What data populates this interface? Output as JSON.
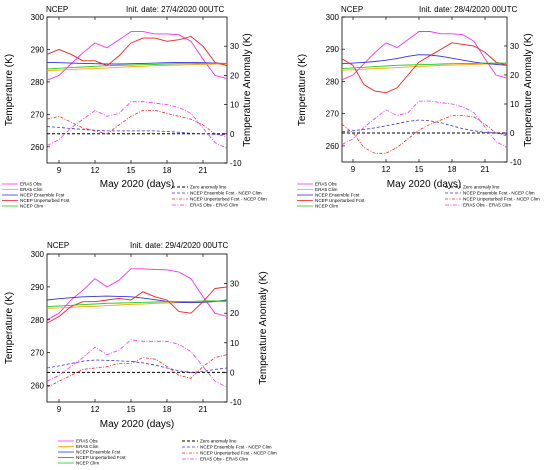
{
  "colors": {
    "era5_obs": "#ee33ee",
    "era5_clim": "#ffa500",
    "ens_fcst": "#3333dd",
    "unp_fcst": "#ee2222",
    "ncep_clim": "#22cc22",
    "zero": "#000000",
    "ens_anom": "#3333dd",
    "unp_anom": "#ee2222",
    "obs_anom": "#ee33ee"
  },
  "legend": {
    "left": [
      "ERA5 Obs",
      "ERA5 Clim",
      "NCEP Ensemble Fcst",
      "NCEP Unperturbed Fcst",
      "NCEP Clim"
    ],
    "right": [
      "Zero anomaly line",
      "NCEP Ensemble Fcst - NCEP Clim",
      "NCEP Unperturbed Fcst - NCEP Clim",
      "ERA5 Obs - ERA5 Clim"
    ]
  },
  "chart_data": [
    {
      "type": "line",
      "model": "NCEP",
      "title": "Init. date: 27/4/2020 00UTC",
      "xlabel": "May 2020 (days)",
      "ylabel": "Temperature (K)",
      "y2label": "Temperature Anomaly (K)",
      "xlim": [
        8,
        23
      ],
      "ylim": [
        255,
        300
      ],
      "y2lim": [
        -10,
        40
      ],
      "xticks": [
        9,
        12,
        15,
        18,
        21
      ],
      "yticks": [
        260,
        270,
        280,
        290,
        300
      ],
      "y2ticks": [
        -10,
        0,
        10,
        20,
        30
      ],
      "x": [
        8,
        9,
        10,
        11,
        12,
        13,
        14,
        15,
        16,
        17,
        18,
        19,
        20,
        21,
        22,
        23
      ],
      "series": [
        {
          "name": "ERA5 Obs",
          "axis": "left",
          "values": [
            280.5,
            282,
            285.5,
            289,
            292,
            290.5,
            293,
            295.5,
            295.5,
            294.8,
            294.8,
            294.5,
            292.5,
            287,
            282,
            281
          ]
        },
        {
          "name": "ERA5 Clim",
          "axis": "left",
          "values": [
            283.5,
            283.6,
            283.8,
            284,
            284.1,
            284.3,
            284.5,
            284.7,
            284.8,
            285,
            285.1,
            285.2,
            285.3,
            285.4,
            285.5,
            285.5
          ]
        },
        {
          "name": "NCEP Ensemble Fcst",
          "axis": "left",
          "values": [
            286,
            285.9,
            285.8,
            285.7,
            285.6,
            285.5,
            285.5,
            285.6,
            285.7,
            285.8,
            285.9,
            286,
            286,
            285.9,
            285.8,
            285.7
          ]
        },
        {
          "name": "NCEP Unperturbed Fcst",
          "axis": "left",
          "values": [
            288.5,
            290,
            288.5,
            286.5,
            286.5,
            285,
            288,
            292,
            293.5,
            293.5,
            292.5,
            293,
            294,
            291,
            286,
            285
          ]
        },
        {
          "name": "NCEP Clim",
          "axis": "left",
          "values": [
            284,
            284.2,
            284.4,
            284.6,
            284.8,
            285,
            285.1,
            285.2,
            285.3,
            285.4,
            285.5,
            285.6,
            285.6,
            285.7,
            285.7,
            285.7
          ]
        },
        {
          "name": "Zero anomaly line",
          "axis": "right",
          "values": [
            0,
            0,
            0,
            0,
            0,
            0,
            0,
            0,
            0,
            0,
            0,
            0,
            0,
            0,
            0,
            0
          ]
        },
        {
          "name": "NCEP Ensemble Fcst - NCEP Clim",
          "axis": "right",
          "values": [
            2.5,
            2.2,
            1.8,
            1.5,
            1.2,
            1,
            1,
            1,
            1,
            1,
            0.8,
            0.5,
            0.2,
            0,
            -0.2,
            -0.3
          ]
        },
        {
          "name": "NCEP Unperturbed Fcst - NCEP Clim",
          "axis": "right",
          "values": [
            5,
            6,
            4,
            2,
            1,
            0,
            3,
            6,
            8,
            8,
            7,
            6,
            5,
            3,
            0,
            -1
          ]
        },
        {
          "name": "ERA5 Obs - ERA5 Clim",
          "axis": "right",
          "values": [
            -4,
            -2,
            2,
            5,
            8,
            6,
            7,
            11,
            11,
            10.5,
            10,
            9,
            7,
            2,
            -3,
            -5
          ]
        }
      ]
    },
    {
      "type": "line",
      "model": "NCEP",
      "title": "Init. date: 28/4/2020 00UTC",
      "xlabel": "May 2020 (days)",
      "ylabel": "Temperature (K)",
      "y2label": "Temperature Anomaly (K)",
      "xlim": [
        8,
        23
      ],
      "ylim": [
        255,
        300
      ],
      "y2lim": [
        -10,
        40
      ],
      "xticks": [
        9,
        12,
        15,
        18,
        21
      ],
      "yticks": [
        260,
        270,
        280,
        290,
        300
      ],
      "y2ticks": [
        -10,
        0,
        10,
        20,
        30
      ],
      "x": [
        8,
        9,
        10,
        11,
        12,
        13,
        14,
        15,
        16,
        17,
        18,
        19,
        20,
        21,
        22,
        23
      ],
      "series": [
        {
          "name": "ERA5 Obs",
          "axis": "left",
          "values": [
            280.5,
            282,
            285.5,
            289,
            292,
            290.5,
            293,
            295.5,
            295.5,
            294.8,
            294.8,
            294.5,
            292.5,
            287,
            282,
            281
          ]
        },
        {
          "name": "ERA5 Clim",
          "axis": "left",
          "values": [
            283.5,
            283.6,
            283.8,
            284,
            284.1,
            284.3,
            284.5,
            284.7,
            284.8,
            285,
            285.1,
            285.2,
            285.3,
            285.4,
            285.5,
            285.5
          ]
        },
        {
          "name": "NCEP Ensemble Fcst",
          "axis": "left",
          "values": [
            285.5,
            285.7,
            285.9,
            286.2,
            286.6,
            287.1,
            287.8,
            288.3,
            288.2,
            287.8,
            287.2,
            286.6,
            286,
            285.6,
            285.3,
            285
          ]
        },
        {
          "name": "NCEP Unperturbed Fcst",
          "axis": "left",
          "values": [
            287,
            285,
            279,
            277,
            276.5,
            278,
            282,
            286,
            288,
            290,
            292,
            291.5,
            291,
            289,
            286,
            285
          ]
        },
        {
          "name": "NCEP Clim",
          "axis": "left",
          "values": [
            284,
            284.2,
            284.4,
            284.6,
            284.8,
            285,
            285.1,
            285.2,
            285.3,
            285.4,
            285.5,
            285.6,
            285.6,
            285.7,
            285.7,
            285.7
          ]
        },
        {
          "name": "Zero anomaly line",
          "axis": "right",
          "values": [
            0,
            0,
            0,
            0,
            0,
            0,
            0,
            0,
            0,
            0,
            0,
            0,
            0,
            0,
            0,
            0
          ]
        },
        {
          "name": "NCEP Ensemble Fcst - NCEP Clim",
          "axis": "right",
          "values": [
            0.5,
            0.8,
            1.2,
            1.8,
            2.5,
            3.2,
            4,
            4.5,
            4.2,
            3.5,
            2.5,
            1.5,
            0.8,
            0.2,
            0,
            -0.5
          ]
        },
        {
          "name": "NCEP Unperturbed Fcst - NCEP Clim",
          "axis": "right",
          "values": [
            3,
            0,
            -5,
            -7,
            -7,
            -5,
            -2,
            1,
            3,
            4.5,
            6,
            6,
            5.5,
            3,
            0,
            -1
          ]
        },
        {
          "name": "ERA5 Obs - ERA5 Clim",
          "axis": "right",
          "values": [
            -4,
            -2,
            2,
            5,
            8,
            6,
            7,
            11,
            11,
            10.5,
            10,
            9,
            7,
            2,
            -3,
            -5
          ]
        }
      ]
    },
    {
      "type": "line",
      "model": "NCEP",
      "title": "Init. date: 29/4/2020 00UTC",
      "xlabel": "May 2020 (days)",
      "ylabel": "Temperature (K)",
      "y2label": "Temperature Anomaly (K)",
      "xlim": [
        8,
        23
      ],
      "ylim": [
        255,
        300
      ],
      "y2lim": [
        -10,
        40
      ],
      "xticks": [
        9,
        12,
        15,
        18,
        21
      ],
      "yticks": [
        260,
        270,
        280,
        290,
        300
      ],
      "y2ticks": [
        -10,
        0,
        10,
        20,
        30
      ],
      "x": [
        8,
        9,
        10,
        11,
        12,
        13,
        14,
        15,
        16,
        17,
        18,
        19,
        20,
        21,
        22,
        23
      ],
      "series": [
        {
          "name": "ERA5 Obs",
          "axis": "left",
          "values": [
            280,
            282,
            286,
            289,
            292.5,
            290,
            292,
            295.5,
            295.5,
            295.3,
            295.2,
            294.5,
            292.5,
            287,
            282,
            281
          ]
        },
        {
          "name": "ERA5 Clim",
          "axis": "left",
          "values": [
            283.5,
            283.6,
            283.8,
            284,
            284.1,
            284.3,
            284.5,
            284.7,
            284.8,
            285,
            285.1,
            285.2,
            285.3,
            285.4,
            285.5,
            285.5
          ]
        },
        {
          "name": "NCEP Ensemble Fcst",
          "axis": "left",
          "values": [
            286,
            286.4,
            286.7,
            287,
            287.1,
            287.2,
            287.1,
            287,
            286.6,
            286.1,
            285.6,
            285.3,
            285.2,
            285.3,
            285.6,
            286
          ]
        },
        {
          "name": "NCEP Unperturbed Fcst",
          "axis": "left",
          "values": [
            279,
            281,
            284,
            285.5,
            285.5,
            286,
            286.5,
            286,
            288.5,
            287,
            286,
            282.5,
            282,
            285.5,
            289.5,
            290
          ]
        },
        {
          "name": "NCEP Clim",
          "axis": "left",
          "values": [
            284,
            284.2,
            284.4,
            284.6,
            284.8,
            285,
            285.1,
            285.2,
            285.3,
            285.4,
            285.5,
            285.6,
            285.6,
            285.7,
            285.7,
            285.7
          ]
        },
        {
          "name": "Zero anomaly line",
          "axis": "right",
          "values": [
            0,
            0,
            0,
            0,
            0,
            0,
            0,
            0,
            0,
            0,
            0,
            0,
            0,
            0,
            0,
            0
          ]
        },
        {
          "name": "NCEP Ensemble Fcst - NCEP Clim",
          "axis": "right",
          "values": [
            1.5,
            2.2,
            3,
            3.8,
            4.2,
            4.1,
            3.9,
            3.7,
            3.2,
            2.5,
            1.5,
            0.5,
            0,
            0.3,
            1,
            1.5
          ]
        },
        {
          "name": "NCEP Unperturbed Fcst - NCEP Clim",
          "axis": "right",
          "values": [
            -5,
            -3,
            -1,
            1,
            1.5,
            2,
            3,
            3,
            5,
            4.5,
            2,
            -1,
            -2,
            2,
            5,
            6
          ]
        },
        {
          "name": "ERA5 Obs - ERA5 Clim",
          "axis": "right",
          "values": [
            -3,
            -1,
            2,
            5,
            8.5,
            6,
            7.5,
            11,
            10.5,
            10.5,
            10.5,
            9.5,
            7,
            2,
            -3,
            -5
          ]
        }
      ]
    }
  ]
}
